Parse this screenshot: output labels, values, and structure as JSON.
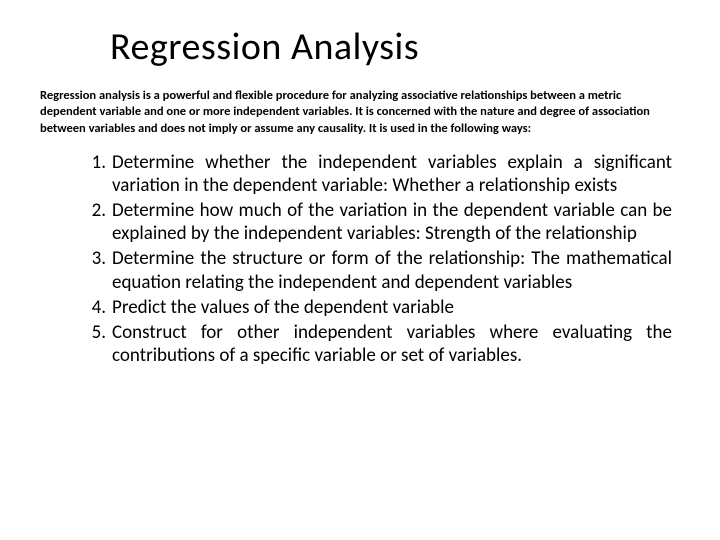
{
  "title": "Regression Analysis",
  "intro": "Regression analysis is a powerful and flexible procedure for analyzing associative relationships between a metric dependent variable and one or more independent variables. It is concerned with the nature and degree of association between variables and does not imply or assume any causality. It is used in the following ways:",
  "ways": [
    "Determine whether the independent variables explain a significant variation in the dependent variable: Whether a relationship exists",
    "Determine how much of the variation in the dependent variable can be explained by the independent variables: Strength of the relationship",
    "Determine the structure or form of the relationship: The mathematical equation relating the independent and dependent variables",
    "Predict the values of the dependent variable",
    "Construct for other independent variables where evaluating the contributions of a specific variable or set of variables."
  ],
  "colors": {
    "background": "#ffffff",
    "text": "#000000"
  },
  "typography": {
    "title_fontsize": 38,
    "intro_fontsize": 12.5,
    "list_fontsize": 19,
    "font_family": "Calibri"
  }
}
